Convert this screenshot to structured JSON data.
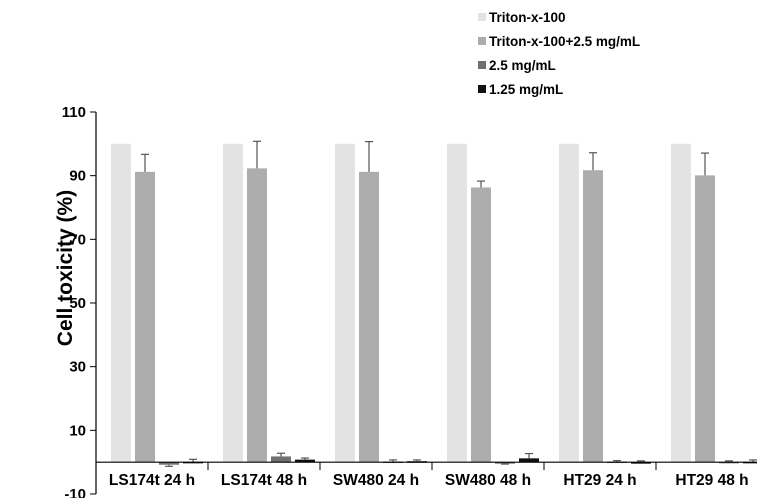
{
  "chart_data": {
    "type": "bar",
    "ylabel": "Cell toxicity (%)",
    "ylim": [
      -10,
      110
    ],
    "yticks": [
      -10,
      10,
      30,
      50,
      70,
      90,
      110
    ],
    "grid": false,
    "legend_position": "top-right",
    "categories": [
      "LS174t 24 h",
      "LS174t 48 h",
      "SW480 24 h",
      "SW480 48 h",
      "HT29 24 h",
      "HT29 48 h"
    ],
    "series": [
      {
        "name": "Triton-x-100",
        "color": "#e3e3e3",
        "values": [
          100,
          100,
          100,
          100,
          100,
          100
        ],
        "errors": [
          0,
          0,
          0,
          0,
          0,
          0
        ]
      },
      {
        "name": "Triton-x-100+2.5 mg/mL",
        "color": "#adadad",
        "values": [
          91.2,
          92.3,
          91.2,
          86.3,
          91.7,
          90.1
        ],
        "errors": [
          5.5,
          8.5,
          9.5,
          2.0,
          5.5,
          7.0
        ]
      },
      {
        "name": "2.5 mg/mL",
        "color": "#707070",
        "values": [
          -0.8,
          1.8,
          0.2,
          -0.3,
          0.2,
          0.1
        ],
        "errors": [
          0.5,
          1.0,
          0.5,
          0.3,
          0.3,
          0.3
        ]
      },
      {
        "name": "1.25 mg/mL",
        "color": "#111111",
        "values": [
          0.1,
          0.8,
          0.3,
          1.2,
          0.0,
          0.1
        ],
        "errors": [
          0.8,
          0.5,
          0.4,
          1.5,
          0.4,
          0.6
        ]
      }
    ]
  }
}
